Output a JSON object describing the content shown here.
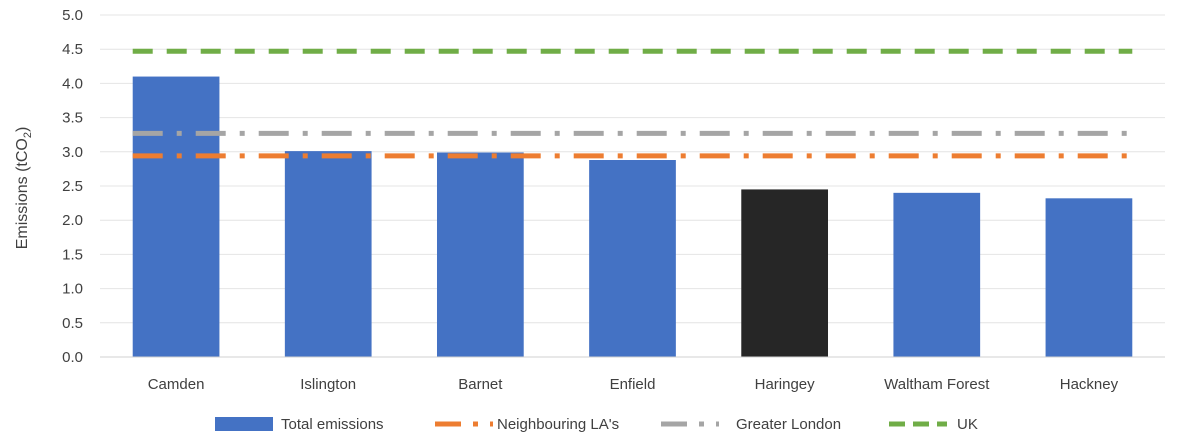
{
  "chart_data": {
    "type": "bar",
    "ylabel": "Emissions (tCO",
    "ylabel_subscript": "2",
    "ylabel_suffix": ")",
    "ylim": [
      0,
      5
    ],
    "yticks": [
      "0.0",
      "0.5",
      "1.0",
      "1.5",
      "2.0",
      "2.5",
      "3.0",
      "3.5",
      "4.0",
      "4.5",
      "5.0"
    ],
    "grid": true,
    "categories": [
      "Camden",
      "Islington",
      "Barnet",
      "Enfield",
      "Haringey",
      "Waltham Forest",
      "Hackney"
    ],
    "series": [
      {
        "name": "Total emissions",
        "kind": "bar",
        "color": "#4472C4",
        "highlight": {
          "category": "Haringey",
          "color": "#262626"
        },
        "values": [
          4.1,
          3.01,
          2.99,
          2.88,
          2.45,
          2.4,
          2.32
        ]
      },
      {
        "name": "Neighbouring LA's",
        "kind": "reference-line",
        "style": "dash-dot",
        "color": "#ED7D31",
        "value": 2.94
      },
      {
        "name": "Greater London",
        "kind": "reference-line",
        "style": "dash-dot",
        "color": "#A5A5A5",
        "value": 3.27
      },
      {
        "name": "UK",
        "kind": "reference-line",
        "style": "dash",
        "color": "#70AD47",
        "value": 4.47
      }
    ],
    "legend_position": "bottom"
  }
}
